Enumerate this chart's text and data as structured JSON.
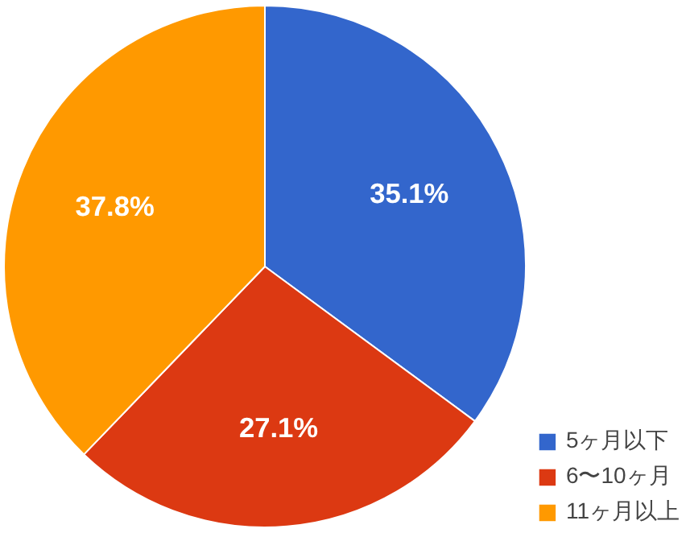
{
  "chart_data": {
    "type": "pie",
    "categories": [
      "5ヶ月以下",
      "6〜10ヶ月",
      "11ヶ月以上"
    ],
    "values": [
      35.1,
      27.1,
      37.8
    ],
    "colors": [
      "#3366cc",
      "#dc3912",
      "#ff9900"
    ],
    "value_labels": [
      "35.1%",
      "27.1%",
      "37.8%"
    ],
    "legend": "bottom right"
  }
}
